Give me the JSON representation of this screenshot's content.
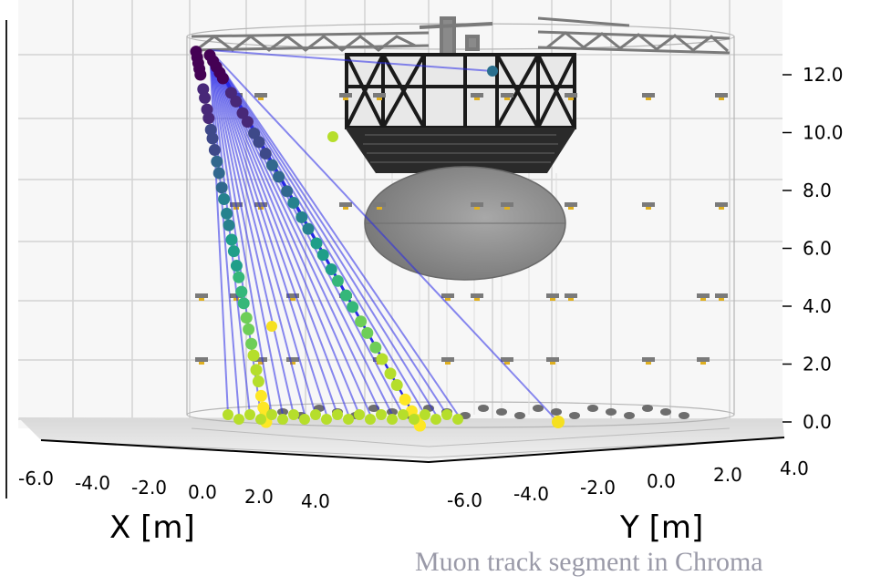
{
  "chart_data": {
    "type": "scatter",
    "title": "",
    "xlabel": "X [m]",
    "ylabel": "Y [m]",
    "x_ticks": [
      "-6.0",
      "-4.0",
      "-2.0",
      "0.0",
      "2.0",
      "4.0"
    ],
    "y_ticks": [
      "-6.0",
      "-4.0",
      "-2.0",
      "0.0",
      "2.0",
      "4.0"
    ],
    "z_ticks": [
      "0.0",
      "2.0",
      "4.0",
      "6.0",
      "8.0",
      "10.0",
      "12.0"
    ],
    "zlim": [
      0,
      13
    ],
    "grid": true,
    "points_z": [
      12.8,
      12.6,
      12.4,
      12.2,
      12.0,
      11.5,
      11.2,
      10.8,
      10.5,
      10.1,
      9.8,
      9.4,
      9.0,
      8.6,
      8.1,
      7.7,
      7.2,
      6.8,
      6.3,
      5.9,
      5.4,
      5.0,
      4.5,
      4.1,
      3.6,
      3.2,
      2.7,
      2.3,
      1.8,
      1.4,
      0.9,
      0.5,
      0.2,
      0.0,
      0.0,
      0.0
    ],
    "colormap": "viridis"
  },
  "caption": "Muon track segment in Chroma",
  "colors": {
    "track": "#2a2ae8",
    "structure": "#222222",
    "sphere": "#8c8c8c",
    "grid": "#d4d4d4"
  }
}
